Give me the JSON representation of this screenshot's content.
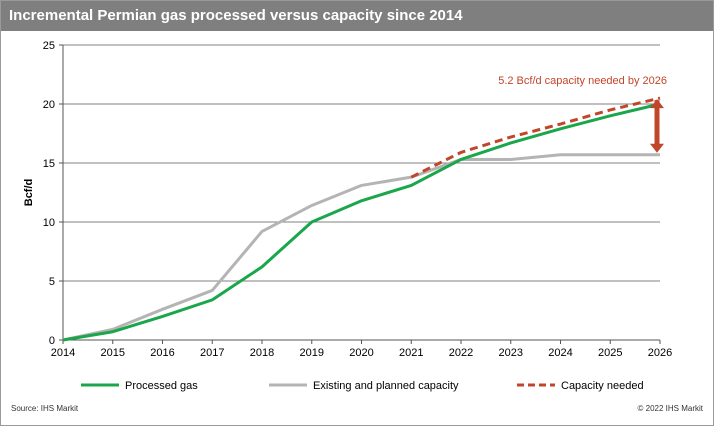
{
  "chart_data": {
    "type": "line",
    "title": "Incremental Permian gas processed versus capacity since 2014",
    "ylabel": "Bcf/d",
    "xlabel": "",
    "x": [
      2014,
      2015,
      2016,
      2017,
      2018,
      2019,
      2020,
      2021,
      2022,
      2023,
      2024,
      2025,
      2026
    ],
    "ylim": [
      0,
      25
    ],
    "yticks": [
      0,
      5,
      10,
      15,
      20,
      25
    ],
    "grid": true,
    "legend_position": "bottom",
    "series": [
      {
        "name": "Processed gas",
        "color": "#1aa64a",
        "style": "solid",
        "x": [
          2014,
          2015,
          2016,
          2017,
          2018,
          2019,
          2020,
          2021,
          2022,
          2023,
          2024,
          2025,
          2026
        ],
        "values": [
          0,
          0.7,
          2.0,
          3.4,
          6.2,
          10.0,
          11.8,
          13.1,
          15.3,
          16.7,
          17.9,
          19.0,
          20.0
        ]
      },
      {
        "name": "Existing and planned capacity",
        "color": "#b4b4b4",
        "style": "solid",
        "x": [
          2014,
          2015,
          2016,
          2017,
          2018,
          2019,
          2020,
          2021,
          2022,
          2023,
          2024,
          2025,
          2026
        ],
        "values": [
          0,
          0.9,
          2.6,
          4.2,
          9.2,
          11.4,
          13.1,
          13.8,
          15.3,
          15.3,
          15.7,
          15.7,
          15.7
        ]
      },
      {
        "name": "Capacity needed",
        "color": "#c0452a",
        "style": "dashed",
        "x": [
          2021,
          2022,
          2023,
          2024,
          2025,
          2026
        ],
        "values": [
          13.8,
          15.9,
          17.2,
          18.3,
          19.5,
          20.5
        ]
      }
    ],
    "annotation": {
      "text": "5.2 Bcf/d capacity needed by 2026",
      "color": "#c0452a",
      "arrow_x": 2026,
      "arrow_from": 20.5,
      "arrow_to": 15.7
    }
  },
  "footer": {
    "source": "Source: IHS Markit",
    "copyright": "© 2022 IHS Markit"
  }
}
